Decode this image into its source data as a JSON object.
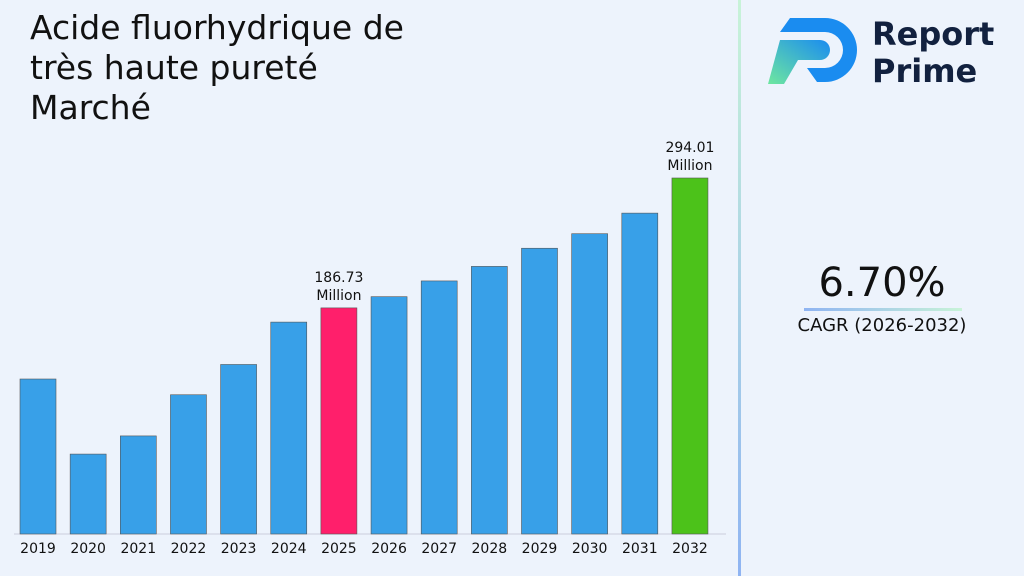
{
  "chart_data": {
    "type": "bar",
    "title": "Acide fluorhydrique de très haute pureté Marché",
    "categories": [
      "2019",
      "2020",
      "2021",
      "2022",
      "2023",
      "2024",
      "2025",
      "2026",
      "2027",
      "2028",
      "2029",
      "2030",
      "2031",
      "2032"
    ],
    "values": [
      128,
      66,
      81,
      115,
      140,
      175,
      186.73,
      196,
      209,
      221,
      236,
      248,
      265,
      294.01
    ],
    "value_labels": [
      null,
      null,
      null,
      null,
      null,
      null,
      "186.73 Million",
      null,
      null,
      null,
      null,
      null,
      null,
      "294.01 Million"
    ],
    "colors": [
      "#38a0e8",
      "#38a0e8",
      "#38a0e8",
      "#38a0e8",
      "#38a0e8",
      "#38a0e8",
      "#ff1f6b",
      "#38a0e8",
      "#38a0e8",
      "#38a0e8",
      "#38a0e8",
      "#38a0e8",
      "#38a0e8",
      "#4cc21a"
    ]
  },
  "cagr": {
    "value": "6.70%",
    "label": "CAGR (2026-2032)"
  },
  "logo": {
    "line1": "Report",
    "line2": "Prime"
  }
}
